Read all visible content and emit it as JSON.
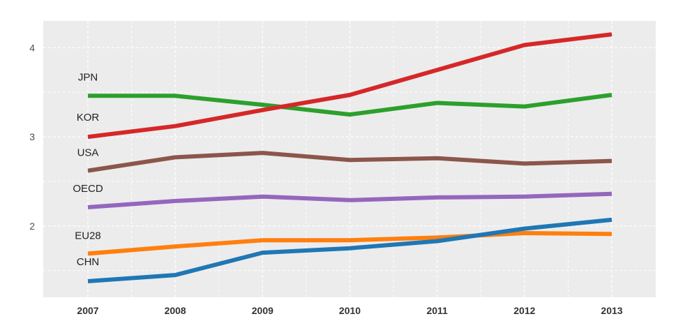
{
  "chart_data": {
    "type": "line",
    "title": "",
    "xlabel": "",
    "ylabel": "",
    "x": [
      "2007",
      "2008",
      "2009",
      "2010",
      "2011",
      "2012",
      "2013"
    ],
    "xlim": [
      2007,
      2013
    ],
    "ylim": [
      1.2,
      4.3
    ],
    "yticks": [
      "2",
      "3",
      "4"
    ],
    "grid": true,
    "legend": "inline labels at left",
    "series": [
      {
        "name": "JPN",
        "color": "#2ca02c",
        "values": [
          3.46,
          3.46,
          3.36,
          3.25,
          3.38,
          3.34,
          3.47
        ]
      },
      {
        "name": "KOR",
        "color": "#d62728",
        "values": [
          3.0,
          3.12,
          3.3,
          3.47,
          3.75,
          4.03,
          4.15
        ]
      },
      {
        "name": "USA",
        "color": "#8c564b",
        "values": [
          2.62,
          2.77,
          2.82,
          2.74,
          2.76,
          2.7,
          2.73
        ]
      },
      {
        "name": "OECD",
        "color": "#9467bd",
        "values": [
          2.21,
          2.28,
          2.33,
          2.29,
          2.32,
          2.33,
          2.36
        ]
      },
      {
        "name": "EU28",
        "color": "#ff7f0e",
        "values": [
          1.69,
          1.77,
          1.84,
          1.84,
          1.87,
          1.92,
          1.91
        ]
      },
      {
        "name": "CHN",
        "color": "#1f77b4",
        "values": [
          1.38,
          1.45,
          1.7,
          1.75,
          1.83,
          1.97,
          2.07
        ]
      }
    ]
  }
}
